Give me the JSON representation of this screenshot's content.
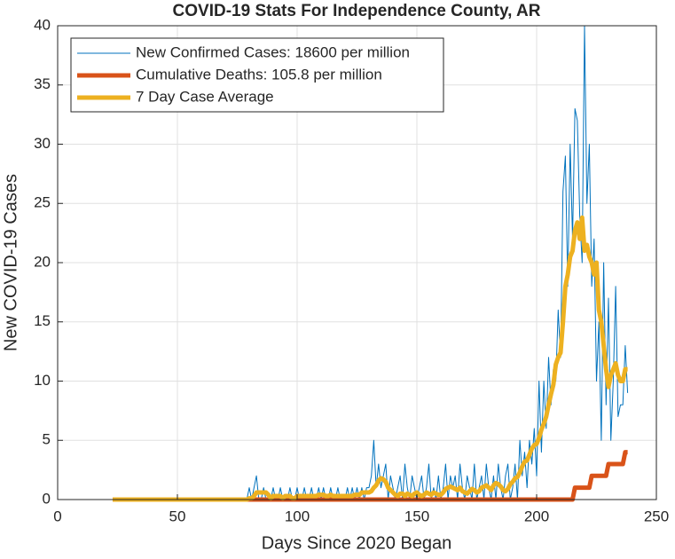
{
  "chart_data": {
    "type": "line",
    "title": "COVID-19 Stats For Independence County, AR",
    "xlabel": "Days Since 2020 Began",
    "ylabel": "New COVID-19 Cases",
    "xlim": [
      0,
      250
    ],
    "xticks": [
      0,
      50,
      100,
      150,
      200,
      250
    ],
    "ylim": [
      0,
      40
    ],
    "yticks": [
      0,
      5,
      10,
      15,
      20,
      25,
      30,
      35,
      40
    ],
    "grid": true,
    "legend": "upper left",
    "x": [
      23,
      24,
      25,
      26,
      27,
      28,
      29,
      30,
      31,
      32,
      33,
      34,
      35,
      36,
      37,
      38,
      39,
      40,
      41,
      42,
      43,
      44,
      45,
      46,
      47,
      48,
      49,
      50,
      51,
      52,
      53,
      54,
      55,
      56,
      57,
      58,
      59,
      60,
      61,
      62,
      63,
      64,
      65,
      66,
      67,
      68,
      69,
      70,
      71,
      72,
      73,
      74,
      75,
      76,
      77,
      78,
      79,
      80,
      81,
      82,
      83,
      84,
      85,
      86,
      87,
      88,
      89,
      90,
      91,
      92,
      93,
      94,
      95,
      96,
      97,
      98,
      99,
      100,
      101,
      102,
      103,
      104,
      105,
      106,
      107,
      108,
      109,
      110,
      111,
      112,
      113,
      114,
      115,
      116,
      117,
      118,
      119,
      120,
      121,
      122,
      123,
      124,
      125,
      126,
      127,
      128,
      129,
      130,
      131,
      132,
      133,
      134,
      135,
      136,
      137,
      138,
      139,
      140,
      141,
      142,
      143,
      144,
      145,
      146,
      147,
      148,
      149,
      150,
      151,
      152,
      153,
      154,
      155,
      156,
      157,
      158,
      159,
      160,
      161,
      162,
      163,
      164,
      165,
      166,
      167,
      168,
      169,
      170,
      171,
      172,
      173,
      174,
      175,
      176,
      177,
      178,
      179,
      180,
      181,
      182,
      183,
      184,
      185,
      186,
      187,
      188,
      189,
      190,
      191,
      192,
      193,
      194,
      195,
      196,
      197,
      198,
      199,
      200,
      201,
      202,
      203,
      204,
      205,
      206,
      207,
      208,
      209,
      210,
      211,
      212,
      213,
      214,
      215,
      216,
      217,
      218,
      219,
      220,
      221,
      222,
      223,
      224,
      225,
      226,
      227,
      228,
      229,
      230,
      231,
      232,
      233,
      234,
      235,
      236,
      237,
      238
    ],
    "series": [
      {
        "name": "New Confirmed Cases: 18600 per million",
        "color": "#0072bd",
        "width": 1,
        "values": [
          0,
          0,
          0,
          0,
          0,
          0,
          0,
          0,
          0,
          0,
          0,
          0,
          0,
          0,
          0,
          0,
          0,
          0,
          0,
          0,
          0,
          0,
          0,
          0,
          0,
          0,
          0,
          0,
          0,
          0,
          0,
          0,
          0,
          0,
          0,
          0,
          0,
          0,
          0,
          0,
          0,
          0,
          0,
          0,
          0,
          0,
          0,
          0,
          0,
          0,
          0,
          0,
          0,
          0,
          0,
          0,
          0,
          1,
          0,
          1,
          2,
          0,
          0,
          1,
          0,
          0,
          0,
          1,
          0,
          0,
          1,
          0,
          0,
          0,
          1,
          0,
          0,
          1,
          0,
          0,
          1,
          0,
          0,
          1,
          0,
          0,
          1,
          0,
          1,
          0,
          0,
          1,
          0,
          0,
          1,
          0,
          0,
          0,
          1,
          0,
          1,
          0,
          1,
          0,
          1,
          0,
          1,
          1,
          2,
          5,
          1,
          3,
          1,
          2,
          3,
          0,
          2,
          1,
          0,
          1,
          2,
          0,
          3,
          1,
          0,
          2,
          1,
          0,
          1,
          2,
          0,
          1,
          3,
          0,
          1,
          0,
          2,
          0,
          1,
          3,
          0,
          2,
          1,
          2,
          0,
          3,
          1,
          0,
          2,
          1,
          0,
          3,
          0,
          1,
          2,
          0,
          3,
          1,
          0,
          2,
          0,
          3,
          1,
          0,
          2,
          3,
          0,
          1,
          3,
          0,
          5,
          2,
          4,
          1,
          5,
          3,
          6,
          2,
          10,
          4,
          10,
          6,
          12,
          8,
          11,
          10,
          16,
          12,
          26,
          29,
          18,
          30,
          22,
          33,
          32,
          24,
          20,
          40,
          25,
          30,
          18,
          22,
          10,
          15,
          5,
          20,
          8,
          17,
          5,
          10,
          18,
          7,
          8,
          8,
          13,
          9
        ]
      },
      {
        "name": "Cumulative Deaths: 105.8 per million",
        "color": "#d95319",
        "width": 5,
        "values": [
          0,
          0,
          0,
          0,
          0,
          0,
          0,
          0,
          0,
          0,
          0,
          0,
          0,
          0,
          0,
          0,
          0,
          0,
          0,
          0,
          0,
          0,
          0,
          0,
          0,
          0,
          0,
          0,
          0,
          0,
          0,
          0,
          0,
          0,
          0,
          0,
          0,
          0,
          0,
          0,
          0,
          0,
          0,
          0,
          0,
          0,
          0,
          0,
          0,
          0,
          0,
          0,
          0,
          0,
          0,
          0,
          0,
          0,
          0,
          0,
          0,
          0,
          0,
          0,
          0,
          0,
          0,
          0,
          0,
          0,
          0,
          0,
          0,
          0,
          0,
          0,
          0,
          0,
          0,
          0,
          0,
          0,
          0,
          0,
          0,
          0,
          0,
          0,
          0,
          0,
          0,
          0,
          0,
          0,
          0,
          0,
          0,
          0,
          0,
          0,
          0,
          0,
          0,
          0,
          0,
          0,
          0,
          0,
          0,
          0,
          0,
          0,
          0,
          0,
          0,
          0,
          0,
          0,
          0,
          0,
          0,
          0,
          0,
          0,
          0,
          0,
          0,
          0,
          0,
          0,
          0,
          0,
          0,
          0,
          0,
          0,
          0,
          0,
          0,
          0,
          0,
          0,
          0,
          0,
          0,
          0,
          0,
          0,
          0,
          0,
          0,
          0,
          0,
          0,
          0,
          0,
          0,
          0,
          0,
          0,
          0,
          0,
          0,
          0,
          0,
          0,
          0,
          0,
          0,
          0,
          0,
          0,
          0,
          0,
          0,
          0,
          0,
          0,
          0,
          0,
          0,
          0,
          0,
          0,
          0,
          0,
          0,
          0,
          0,
          0,
          0,
          0,
          0,
          1,
          1,
          1,
          1,
          1,
          1,
          1,
          2,
          2,
          2,
          2,
          2,
          2,
          2,
          3,
          3,
          3,
          3,
          3,
          3,
          3,
          4,
          4
        ]
      },
      {
        "name": "7 Day Case Average",
        "color": "#edb120",
        "width": 5,
        "values": [
          0,
          0,
          0,
          0,
          0,
          0,
          0,
          0,
          0,
          0,
          0,
          0,
          0,
          0,
          0,
          0,
          0,
          0,
          0,
          0,
          0,
          0,
          0,
          0,
          0,
          0,
          0,
          0,
          0,
          0,
          0,
          0,
          0,
          0,
          0,
          0,
          0,
          0,
          0,
          0,
          0,
          0,
          0,
          0,
          0,
          0,
          0,
          0,
          0,
          0,
          0,
          0,
          0,
          0,
          0,
          0,
          0,
          0.1,
          0.1,
          0.3,
          0.6,
          0.6,
          0.6,
          0.6,
          0.6,
          0.4,
          0.1,
          0.3,
          0.3,
          0.3,
          0.3,
          0.1,
          0.3,
          0.3,
          0.3,
          0.1,
          0.1,
          0.3,
          0.3,
          0.3,
          0.3,
          0.3,
          0.3,
          0.3,
          0.3,
          0.3,
          0.4,
          0.4,
          0.4,
          0.3,
          0.3,
          0.4,
          0.3,
          0.3,
          0.3,
          0.3,
          0.3,
          0.3,
          0.3,
          0.3,
          0.3,
          0.4,
          0.4,
          0.4,
          0.6,
          0.6,
          0.6,
          0.6,
          0.7,
          1.0,
          1.2,
          1.6,
          1.8,
          1.7,
          1.5,
          1.0,
          0.8,
          0.6,
          0.4,
          0.3,
          0.5,
          0.5,
          0.3,
          0.5,
          0.4,
          0.3,
          0.5,
          0.6,
          0.4,
          0.3,
          0.4,
          0.6,
          0.5,
          0.4,
          0.6,
          0.5,
          0.4,
          0.4,
          0.6,
          0.9,
          1.0,
          1.1,
          1.0,
          0.9,
          0.8,
          1.0,
          0.7,
          0.6,
          0.5,
          0.7,
          0.9,
          0.8,
          0.6,
          0.7,
          1.0,
          1.1,
          1.2,
          1.0,
          0.8,
          1.2,
          1.4,
          1.3,
          1.1,
          0.8,
          0.7,
          0.9,
          1.3,
          1.5,
          1.8,
          1.9,
          2.3,
          2.8,
          3.2,
          3.3,
          3.8,
          4.3,
          4.6,
          4.7,
          5.2,
          5.9,
          6.4,
          7.0,
          8.0,
          8.9,
          9.7,
          11.4,
          12.0,
          12.4,
          15.0,
          18.0,
          19.0,
          20.5,
          21.0,
          22.7,
          23.4,
          22.0,
          23.8,
          21.0,
          21.5,
          20.5,
          20.0,
          19.0,
          20.0,
          16.0,
          15.0,
          13.0,
          11.0,
          9.5,
          10.5,
          11.0,
          11.5,
          10.5,
          10.0,
          10.0,
          11.0,
          11.0
        ]
      }
    ]
  }
}
